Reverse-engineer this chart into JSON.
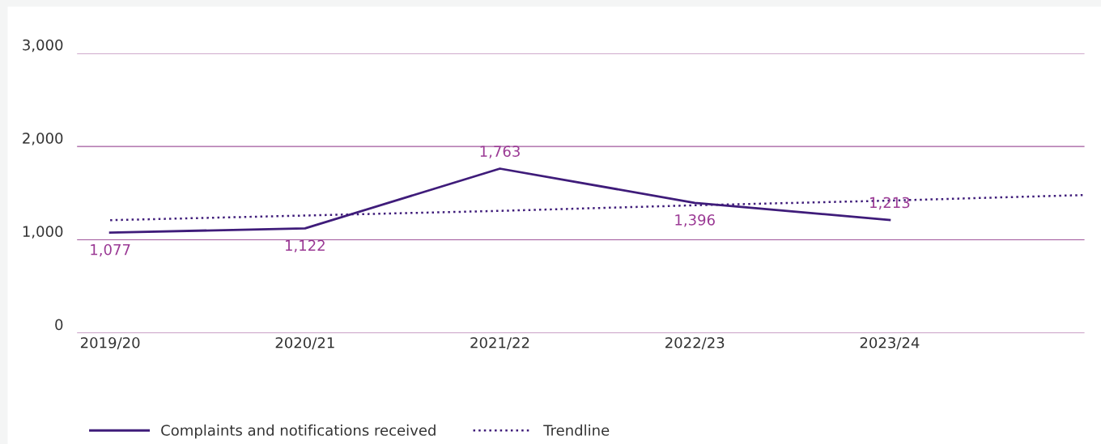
{
  "chart_data": {
    "type": "line",
    "categories": [
      "2019/20",
      "2020/21",
      "2021/22",
      "2022/23",
      "2023/24",
      null
    ],
    "ylim": [
      0,
      3000
    ],
    "yticks": [
      {
        "value": 0,
        "label": "0"
      },
      {
        "value": 1000,
        "label": "1,000"
      },
      {
        "value": 2000,
        "label": "2,000"
      },
      {
        "value": 3000,
        "label": "3,000"
      }
    ],
    "grid": "y",
    "legend": "bottom",
    "series": [
      {
        "name": "Complaints and notifications received",
        "color": "#3f1c7a",
        "line_style": "solid",
        "values": [
          1077,
          1122,
          1763,
          1396,
          1213,
          null
        ],
        "value_labels": [
          "1,077",
          "1,122",
          "1,763",
          "1,396",
          "1,213",
          null
        ]
      },
      {
        "name": "Trendline",
        "color": "#3f1c7a",
        "line_style": "dotted",
        "values": [
          1210,
          1260,
          1310,
          1370,
          1420,
          1480
        ]
      }
    ]
  }
}
